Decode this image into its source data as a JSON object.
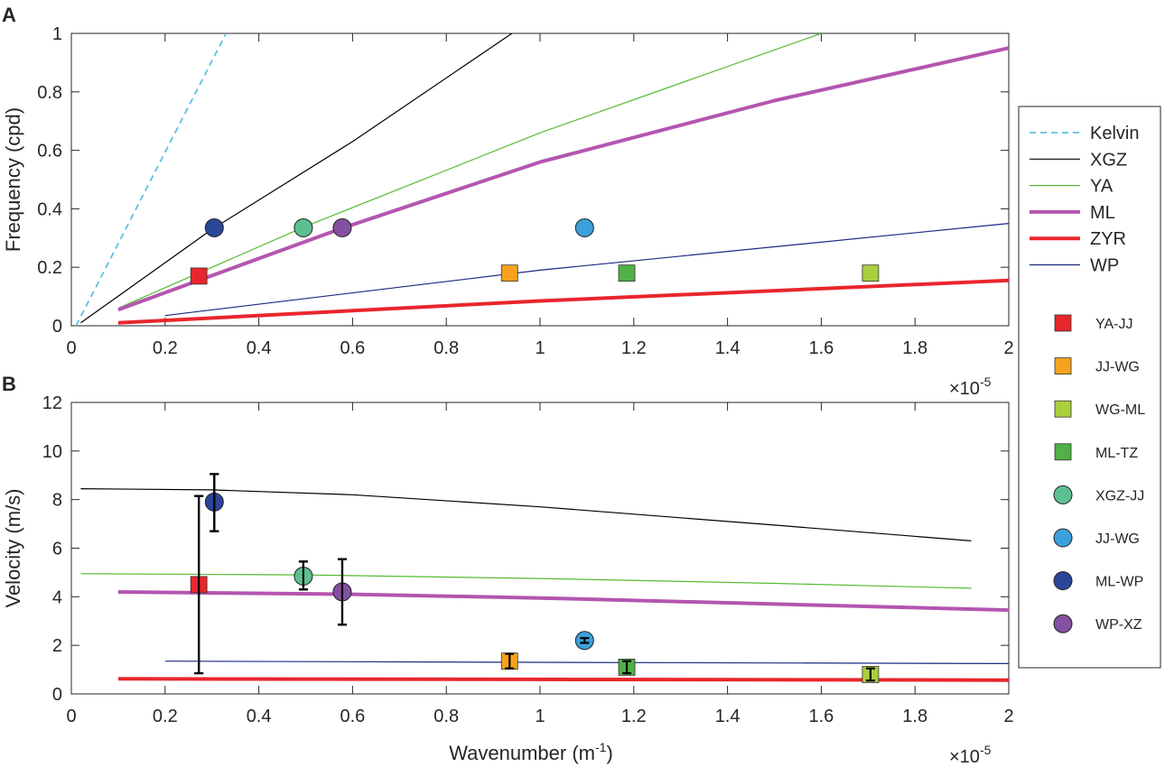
{
  "chart_data": [
    {
      "panel_label": "A",
      "type": "line",
      "xlabel": "",
      "ylabel": "Frequency (cpd)",
      "xlim": [
        0,
        2
      ],
      "ylim": [
        0,
        1
      ],
      "x_scale_note": "×10",
      "x_scale_exp": "-5",
      "xticks": [
        0,
        0.2,
        0.4,
        0.6,
        0.8,
        1,
        1.2,
        1.4,
        1.6,
        1.8,
        2
      ],
      "xtick_labels": [
        "0",
        "0.2",
        "0.4",
        "0.6",
        "0.8",
        "1",
        "1.2",
        "1.4",
        "1.6",
        "1.8",
        "2"
      ],
      "yticks": [
        0,
        0.2,
        0.4,
        0.6,
        0.8,
        1
      ],
      "ytick_labels": [
        "0",
        "0.2",
        "0.4",
        "0.6",
        "0.8",
        "1"
      ],
      "series": [
        {
          "name": "Kelvin",
          "color": "#5bc0e0",
          "style": "dashed",
          "width": "normal",
          "points": [
            [
              0.01,
              0.0
            ],
            [
              0.33,
              1.0
            ]
          ]
        },
        {
          "name": "XGZ",
          "color": "#000000",
          "style": "solid",
          "width": "thin",
          "points": [
            [
              0.02,
              0.01
            ],
            [
              0.3,
              0.33
            ],
            [
              0.6,
              0.63
            ],
            [
              0.94,
              1.0
            ]
          ]
        },
        {
          "name": "YA",
          "color": "#55bb33",
          "style": "solid",
          "width": "thin",
          "points": [
            [
              0.1,
              0.06
            ],
            [
              0.5,
              0.34
            ],
            [
              1.0,
              0.66
            ],
            [
              1.6,
              1.0
            ]
          ]
        },
        {
          "name": "ML",
          "color": "#b455b0",
          "style": "solid",
          "width": "thick",
          "points": [
            [
              0.1,
              0.055
            ],
            [
              0.58,
              0.335
            ],
            [
              1.0,
              0.56
            ],
            [
              1.5,
              0.77
            ],
            [
              2.0,
              0.95
            ]
          ]
        },
        {
          "name": "ZYR",
          "color": "#e8262c",
          "style": "solid",
          "width": "thick",
          "points": [
            [
              0.1,
              0.01
            ],
            [
              1.0,
              0.085
            ],
            [
              2.0,
              0.155
            ]
          ]
        },
        {
          "name": "WP",
          "color": "#1a2a80",
          "style": "solid",
          "width": "thin",
          "points": [
            [
              0.2,
              0.035
            ],
            [
              1.0,
              0.19
            ],
            [
              2.0,
              0.35
            ]
          ]
        }
      ],
      "markers": [
        {
          "name": "YA-JJ",
          "shape": "square",
          "color": "#e8262c",
          "x": 0.272,
          "y": 0.17
        },
        {
          "name": "JJ-WG",
          "shape": "square",
          "color": "#f6a21d",
          "x": 0.935,
          "y": 0.18
        },
        {
          "name": "WG-ML",
          "shape": "square",
          "color": "#a8cf3c",
          "x": 1.705,
          "y": 0.18
        },
        {
          "name": "ML-TZ",
          "shape": "square",
          "color": "#4fb146",
          "x": 1.185,
          "y": 0.18
        },
        {
          "name": "XGZ-JJ",
          "shape": "circle",
          "color": "#5cc092",
          "x": 0.495,
          "y": 0.335
        },
        {
          "name": "JJ-WG",
          "shape": "circle",
          "color": "#3ba0db",
          "x": 1.095,
          "y": 0.335
        },
        {
          "name": "ML-WP",
          "shape": "circle",
          "color": "#2b4599",
          "x": 0.305,
          "y": 0.335
        },
        {
          "name": "WP-XZ",
          "shape": "circle",
          "color": "#8450a2",
          "x": 0.578,
          "y": 0.335
        }
      ]
    },
    {
      "panel_label": "B",
      "type": "line",
      "xlabel": "Wavenumber (m",
      "xlabel_sup": "-1",
      "xlabel_end": ")",
      "ylabel": "Velocity (m/s)",
      "xlim": [
        0,
        2
      ],
      "ylim": [
        0,
        12
      ],
      "x_scale_note": "×10",
      "x_scale_exp": "-5",
      "xticks": [
        0,
        0.2,
        0.4,
        0.6,
        0.8,
        1,
        1.2,
        1.4,
        1.6,
        1.8,
        2
      ],
      "xtick_labels": [
        "0",
        "0.2",
        "0.4",
        "0.6",
        "0.8",
        "1",
        "1.2",
        "1.4",
        "1.6",
        "1.8",
        "2"
      ],
      "yticks": [
        0,
        2,
        4,
        6,
        8,
        10,
        12
      ],
      "ytick_labels": [
        "0",
        "2",
        "4",
        "6",
        "8",
        "10",
        "12"
      ],
      "series": [
        {
          "name": "XGZ",
          "color": "#000000",
          "style": "solid",
          "width": "thin",
          "points": [
            [
              0.02,
              8.45
            ],
            [
              0.3,
              8.4
            ],
            [
              0.6,
              8.2
            ],
            [
              1.0,
              7.7
            ],
            [
              1.5,
              6.95
            ],
            [
              1.92,
              6.3
            ]
          ]
        },
        {
          "name": "YA",
          "color": "#55bb33",
          "style": "solid",
          "width": "thin",
          "points": [
            [
              0.02,
              4.95
            ],
            [
              0.5,
              4.9
            ],
            [
              1.0,
              4.75
            ],
            [
              1.5,
              4.55
            ],
            [
              1.92,
              4.35
            ]
          ]
        },
        {
          "name": "ML",
          "color": "#b455b0",
          "style": "solid",
          "width": "thick",
          "points": [
            [
              0.1,
              4.2
            ],
            [
              0.6,
              4.1
            ],
            [
              1.0,
              3.95
            ],
            [
              1.5,
              3.7
            ],
            [
              2.0,
              3.45
            ]
          ]
        },
        {
          "name": "ZYR",
          "color": "#e8262c",
          "style": "solid",
          "width": "thick",
          "points": [
            [
              0.1,
              0.62
            ],
            [
              1.0,
              0.6
            ],
            [
              2.0,
              0.57
            ]
          ]
        },
        {
          "name": "WP",
          "color": "#1a2a80",
          "style": "solid",
          "width": "thin",
          "points": [
            [
              0.2,
              1.35
            ],
            [
              1.0,
              1.3
            ],
            [
              2.0,
              1.25
            ]
          ]
        }
      ],
      "markers": [
        {
          "name": "YA-JJ",
          "shape": "square",
          "color": "#e8262c",
          "x": 0.272,
          "y": 4.5,
          "err": [
            0.85,
            8.15
          ]
        },
        {
          "name": "JJ-WG",
          "shape": "square",
          "color": "#f6a21d",
          "x": 0.935,
          "y": 1.35,
          "err": [
            1.05,
            1.65
          ]
        },
        {
          "name": "WG-ML",
          "shape": "square",
          "color": "#a8cf3c",
          "x": 1.705,
          "y": 0.8,
          "err": [
            0.55,
            1.05
          ]
        },
        {
          "name": "ML-TZ",
          "shape": "square",
          "color": "#4fb146",
          "x": 1.185,
          "y": 1.1,
          "err": [
            0.85,
            1.35
          ]
        },
        {
          "name": "XGZ-JJ",
          "shape": "circle",
          "color": "#5cc092",
          "x": 0.495,
          "y": 4.85,
          "err": [
            4.3,
            5.45
          ]
        },
        {
          "name": "JJ-WG",
          "shape": "circle",
          "color": "#3ba0db",
          "x": 1.095,
          "y": 2.2,
          "err": [
            2.1,
            2.3
          ]
        },
        {
          "name": "ML-WP",
          "shape": "circle",
          "color": "#2b4599",
          "x": 0.305,
          "y": 7.9,
          "err": [
            6.7,
            9.05
          ]
        },
        {
          "name": "WP-XZ",
          "shape": "circle",
          "color": "#8450a2",
          "x": 0.578,
          "y": 4.2,
          "err": [
            2.85,
            5.55
          ]
        }
      ]
    }
  ],
  "legend": {
    "position": "right",
    "lines": [
      {
        "label": "Kelvin",
        "color": "#5bc0e0",
        "style": "dashed",
        "width": "normal"
      },
      {
        "label": "XGZ",
        "color": "#000000",
        "style": "solid",
        "width": "thin"
      },
      {
        "label": "YA",
        "color": "#55bb33",
        "style": "solid",
        "width": "thin"
      },
      {
        "label": "ML",
        "color": "#b455b0",
        "style": "solid",
        "width": "thick"
      },
      {
        "label": "ZYR",
        "color": "#e8262c",
        "style": "solid",
        "width": "thick"
      },
      {
        "label": "WP",
        "color": "#1a2a80",
        "style": "solid",
        "width": "thin"
      }
    ],
    "markers": [
      {
        "label": "YA-JJ",
        "shape": "square",
        "color": "#e8262c"
      },
      {
        "label": "JJ-WG",
        "shape": "square",
        "color": "#f6a21d"
      },
      {
        "label": "WG-ML",
        "shape": "square",
        "color": "#a8cf3c"
      },
      {
        "label": "ML-TZ",
        "shape": "square",
        "color": "#4fb146"
      },
      {
        "label": "XGZ-JJ",
        "shape": "circle",
        "color": "#5cc092"
      },
      {
        "label": "JJ-WG",
        "shape": "circle",
        "color": "#3ba0db"
      },
      {
        "label": "ML-WP",
        "shape": "circle",
        "color": "#2b4599"
      },
      {
        "label": "WP-XZ",
        "shape": "circle",
        "color": "#8450a2"
      }
    ]
  }
}
